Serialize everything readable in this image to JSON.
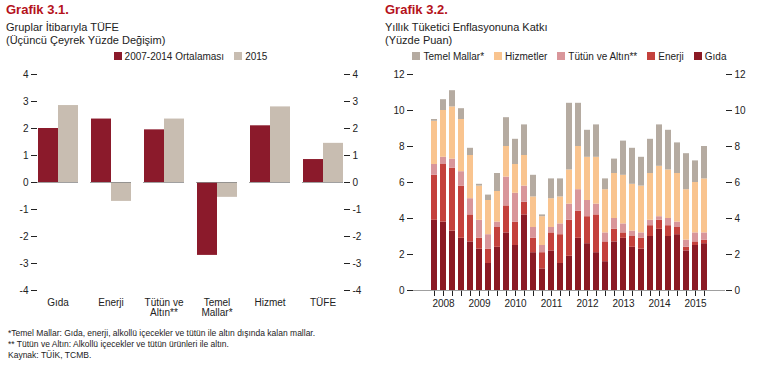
{
  "chart_data": [
    {
      "type": "bar",
      "label": "Grafik 3.1.",
      "title": "Gruplar İtibarıyla TÜFE",
      "subtitle": "(Üçüncü Çeyrek Yüzde Değişim)",
      "categories": [
        "Gıda",
        "Enerji",
        "Tütün ve Altın**",
        "Temel Mallar*",
        "Hizmet",
        "TÜFE"
      ],
      "series": [
        {
          "name": "2007-2014 Ortalaması",
          "color": "#8b1a2b",
          "values": [
            2.0,
            2.35,
            1.95,
            -2.7,
            2.1,
            0.85
          ]
        },
        {
          "name": "2015",
          "color": "#c8bdb1",
          "values": [
            2.85,
            -0.7,
            2.35,
            -0.55,
            2.8,
            1.45
          ]
        }
      ],
      "ylim": [
        -4,
        4
      ],
      "yticks": [
        -4,
        -3,
        -2,
        -1,
        0,
        1,
        2,
        3,
        4
      ],
      "grid": false,
      "legend": "top"
    },
    {
      "type": "bar",
      "label": "Grafik 3.2.",
      "title": "Yıllık Tüketici Enflasyonuna Katkı",
      "subtitle": "(Yüzde Puan)",
      "stacked": true,
      "categories": [
        null,
        "2008",
        null,
        null,
        null,
        "2009",
        null,
        null,
        null,
        "2010",
        null,
        null,
        null,
        "2011",
        null,
        null,
        null,
        "2012",
        null,
        null,
        null,
        "2013",
        null,
        null,
        null,
        "2014",
        null,
        null,
        null,
        "2015",
        null
      ],
      "series": [
        {
          "name": "Gıda",
          "color": "#8b1a24",
          "values": [
            3.9,
            3.8,
            3.3,
            2.9,
            2.7,
            2.3,
            1.5,
            2.4,
            3.2,
            2.5,
            4.2,
            2.1,
            1.2,
            2.2,
            1.5,
            1.9,
            2.9,
            2.6,
            2.1,
            1.6,
            2.7,
            2.9,
            2.4,
            2.3,
            3.0,
            3.4,
            3.0,
            3.1,
            2.2,
            2.5,
            2.6
          ]
        },
        {
          "name": "Enerji",
          "color": "#c4413c",
          "values": [
            2.5,
            3.2,
            3.5,
            2.9,
            1.5,
            0.6,
            0.8,
            1.1,
            1.5,
            1.3,
            0.7,
            0.8,
            0.9,
            1.0,
            1.6,
            2.0,
            1.5,
            1.5,
            2.1,
            1.1,
            0.7,
            0.3,
            0.6,
            0.6,
            0.6,
            0.5,
            0.6,
            0.4,
            0.2,
            0.2,
            0.2
          ]
        },
        {
          "name": "Tütün ve Altın**",
          "color": "#d9969a",
          "values": [
            0.6,
            0.4,
            0.5,
            0.8,
            0.9,
            1.0,
            0.8,
            0.3,
            1.6,
            1.6,
            0.9,
            0.6,
            0.4,
            0.3,
            0.6,
            0.9,
            1.2,
            0.9,
            0.6,
            0.5,
            0.6,
            0.5,
            0.3,
            0.3,
            0.3,
            0.2,
            0.4,
            0.3,
            0.4,
            0.5,
            0.4
          ]
        },
        {
          "name": "Hizmetler",
          "color": "#f9c48f",
          "values": [
            2.4,
            2.6,
            2.9,
            2.9,
            2.4,
            1.9,
            1.9,
            1.7,
            1.7,
            1.6,
            1.7,
            1.7,
            1.6,
            1.6,
            1.5,
            1.9,
            2.4,
            2.4,
            2.6,
            2.4,
            2.5,
            2.7,
            2.6,
            2.6,
            2.6,
            2.8,
            2.7,
            2.7,
            2.8,
            2.8,
            3.0
          ]
        },
        {
          "name": "Temel Mallar*",
          "color": "#b5aba1",
          "values": [
            0.1,
            0.6,
            0.9,
            0.6,
            0.4,
            0.1,
            0.3,
            1.0,
            1.6,
            1.4,
            1.7,
            1.2,
            0.1,
            1.1,
            1.0,
            3.7,
            2.4,
            1.5,
            1.8,
            0.6,
            0.8,
            1.9,
            2.0,
            1.6,
            1.9,
            2.3,
            2.2,
            1.7,
            2.0,
            1.2,
            1.8
          ]
        }
      ],
      "ylim": [
        0,
        12
      ],
      "yticks": [
        0,
        2,
        4,
        6,
        8,
        10,
        12
      ],
      "grid": false,
      "legend": "top"
    }
  ],
  "notes": [
    "*Temel Mallar: Gıda, enerji, alkollü içecekler ve tütün ile altın dışında kalan mallar.",
    "** Tütün ve Altın: Alkollü içecekler ve tütün ürünleri ile altın.",
    "Kaynak: TÜİK, TCMB."
  ]
}
